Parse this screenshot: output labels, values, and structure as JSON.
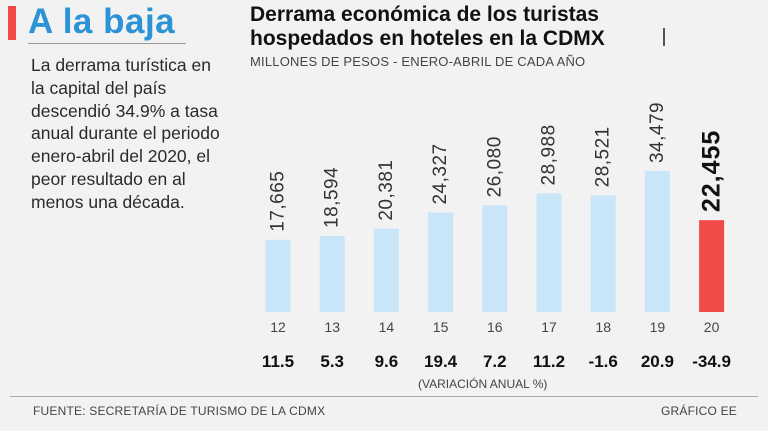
{
  "header": {
    "title": "A la baja",
    "description": "La derrama turística en la capital del país descendió 34.9% a tasa anual durante el periodo enero-abril del 2020, el peor resultado en al menos una década."
  },
  "colors": {
    "accent": "#f04a49",
    "title_blue": "#2b93d6",
    "bar_normal": "#c8e6f8",
    "bar_highlight": "#f04a49"
  },
  "chart_data": {
    "type": "bar",
    "title": "Derrama económica de los turistas hospedados en hoteles en la CDMX",
    "subtitle": "MILLONES DE PESOS - ENERO-ABRIL DE CADA AÑO",
    "categories": [
      "12",
      "13",
      "14",
      "15",
      "16",
      "17",
      "18",
      "19",
      "20"
    ],
    "values": [
      17665,
      18594,
      20381,
      24327,
      26080,
      28988,
      28521,
      34479,
      22455
    ],
    "value_labels": [
      "17,665",
      "18,594",
      "20,381",
      "24,327",
      "26,080",
      "28,988",
      "28,521",
      "34,479",
      "22,455"
    ],
    "highlight_index": 8,
    "variation_labels": [
      "11.5",
      "5.3",
      "9.6",
      "19.4",
      "7.2",
      "11.2",
      "-1.6",
      "20.9",
      "-34.9"
    ],
    "variation_caption": "(VARIACIÓN ANUAL %)",
    "xlabel": "",
    "ylabel": "Millones de pesos",
    "ylim": [
      0,
      34479
    ],
    "grid": false
  },
  "footer": {
    "source": "FUENTE: SECRETARÍA DE TURISMO DE LA CDMX",
    "credit": "GRÁFICO EE"
  }
}
